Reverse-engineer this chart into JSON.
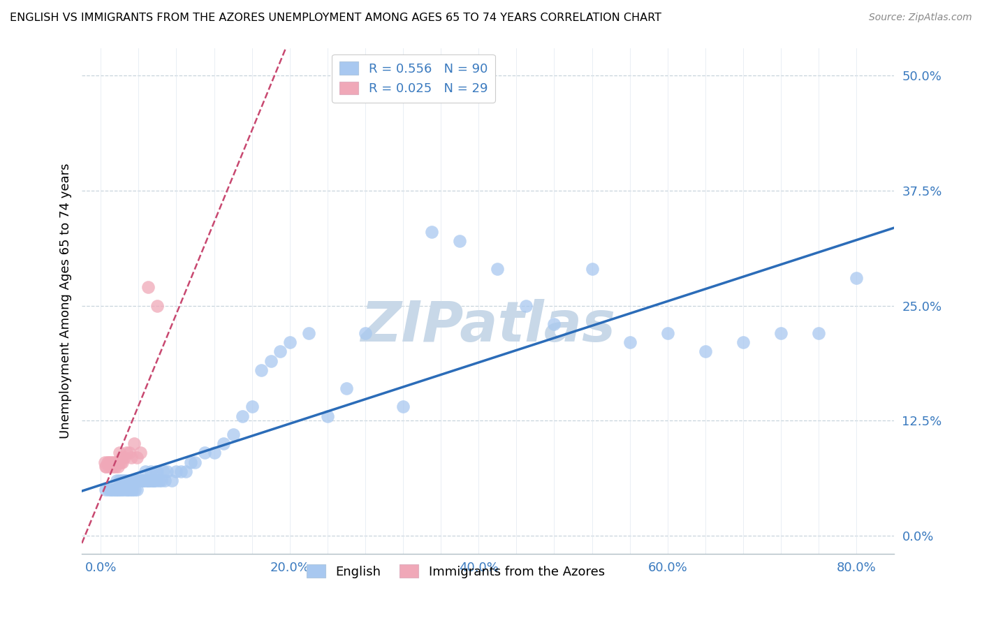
{
  "title": "ENGLISH VS IMMIGRANTS FROM THE AZORES UNEMPLOYMENT AMONG AGES 65 TO 74 YEARS CORRELATION CHART",
  "source": "Source: ZipAtlas.com",
  "ylabel": "Unemployment Among Ages 65 to 74 years",
  "xlabel_ticks": [
    "0.0%",
    "",
    "",
    "",
    "",
    "20.0%",
    "",
    "",
    "",
    "",
    "40.0%",
    "",
    "",
    "",
    "",
    "60.0%",
    "",
    "",
    "",
    "",
    "80.0%"
  ],
  "xlabel_vals": [
    0.0,
    0.04,
    0.08,
    0.12,
    0.16,
    0.2,
    0.24,
    0.28,
    0.32,
    0.36,
    0.4,
    0.44,
    0.48,
    0.52,
    0.56,
    0.6,
    0.64,
    0.68,
    0.72,
    0.76,
    0.8
  ],
  "xtick_major": [
    0.0,
    0.2,
    0.4,
    0.6,
    0.8
  ],
  "xtick_major_labels": [
    "0.0%",
    "20.0%",
    "40.0%",
    "60.0%",
    "80.0%"
  ],
  "ytick_labels": [
    "0.0%",
    "12.5%",
    "25.0%",
    "37.5%",
    "50.0%"
  ],
  "ytick_vals": [
    0.0,
    0.125,
    0.25,
    0.375,
    0.5
  ],
  "xlim": [
    -0.02,
    0.84
  ],
  "ylim": [
    -0.02,
    0.53
  ],
  "english_R": 0.556,
  "english_N": 90,
  "azores_R": 0.025,
  "azores_N": 29,
  "english_color": "#a8c8f0",
  "english_line_color": "#2b6cb8",
  "azores_color": "#f0a8b8",
  "azores_line_color": "#c84870",
  "watermark": "ZIPatlas",
  "watermark_color": "#c8d8e8",
  "english_x": [
    0.005,
    0.008,
    0.01,
    0.012,
    0.013,
    0.015,
    0.016,
    0.017,
    0.018,
    0.019,
    0.02,
    0.021,
    0.022,
    0.023,
    0.024,
    0.025,
    0.026,
    0.027,
    0.028,
    0.029,
    0.03,
    0.031,
    0.032,
    0.033,
    0.034,
    0.035,
    0.036,
    0.037,
    0.038,
    0.039,
    0.04,
    0.041,
    0.042,
    0.043,
    0.044,
    0.045,
    0.046,
    0.047,
    0.048,
    0.049,
    0.05,
    0.051,
    0.052,
    0.053,
    0.054,
    0.055,
    0.056,
    0.057,
    0.058,
    0.059,
    0.06,
    0.062,
    0.064,
    0.066,
    0.068,
    0.07,
    0.075,
    0.08,
    0.085,
    0.09,
    0.095,
    0.1,
    0.11,
    0.12,
    0.13,
    0.14,
    0.15,
    0.16,
    0.17,
    0.18,
    0.19,
    0.2,
    0.22,
    0.24,
    0.26,
    0.28,
    0.32,
    0.35,
    0.38,
    0.42,
    0.45,
    0.48,
    0.52,
    0.56,
    0.6,
    0.64,
    0.68,
    0.72,
    0.76,
    0.8
  ],
  "english_y": [
    0.05,
    0.05,
    0.05,
    0.05,
    0.05,
    0.05,
    0.05,
    0.06,
    0.05,
    0.05,
    0.06,
    0.05,
    0.06,
    0.05,
    0.06,
    0.05,
    0.06,
    0.05,
    0.06,
    0.05,
    0.05,
    0.06,
    0.05,
    0.06,
    0.05,
    0.06,
    0.05,
    0.06,
    0.05,
    0.06,
    0.06,
    0.06,
    0.06,
    0.06,
    0.06,
    0.06,
    0.06,
    0.07,
    0.06,
    0.06,
    0.06,
    0.06,
    0.06,
    0.07,
    0.06,
    0.06,
    0.06,
    0.06,
    0.07,
    0.06,
    0.07,
    0.06,
    0.06,
    0.07,
    0.06,
    0.07,
    0.06,
    0.07,
    0.07,
    0.07,
    0.08,
    0.08,
    0.09,
    0.09,
    0.1,
    0.11,
    0.13,
    0.14,
    0.18,
    0.19,
    0.2,
    0.21,
    0.22,
    0.13,
    0.16,
    0.22,
    0.14,
    0.33,
    0.32,
    0.29,
    0.25,
    0.23,
    0.29,
    0.21,
    0.22,
    0.2,
    0.21,
    0.22,
    0.22,
    0.28
  ],
  "azores_x": [
    0.004,
    0.005,
    0.006,
    0.007,
    0.008,
    0.009,
    0.01,
    0.011,
    0.012,
    0.013,
    0.014,
    0.015,
    0.016,
    0.017,
    0.018,
    0.019,
    0.02,
    0.021,
    0.022,
    0.023,
    0.025,
    0.027,
    0.03,
    0.032,
    0.035,
    0.038,
    0.042,
    0.05,
    0.06
  ],
  "azores_y": [
    0.08,
    0.075,
    0.075,
    0.08,
    0.08,
    0.075,
    0.08,
    0.075,
    0.08,
    0.075,
    0.08,
    0.075,
    0.08,
    0.08,
    0.075,
    0.08,
    0.09,
    0.08,
    0.085,
    0.08,
    0.085,
    0.09,
    0.09,
    0.085,
    0.1,
    0.085,
    0.09,
    0.27,
    0.25
  ]
}
